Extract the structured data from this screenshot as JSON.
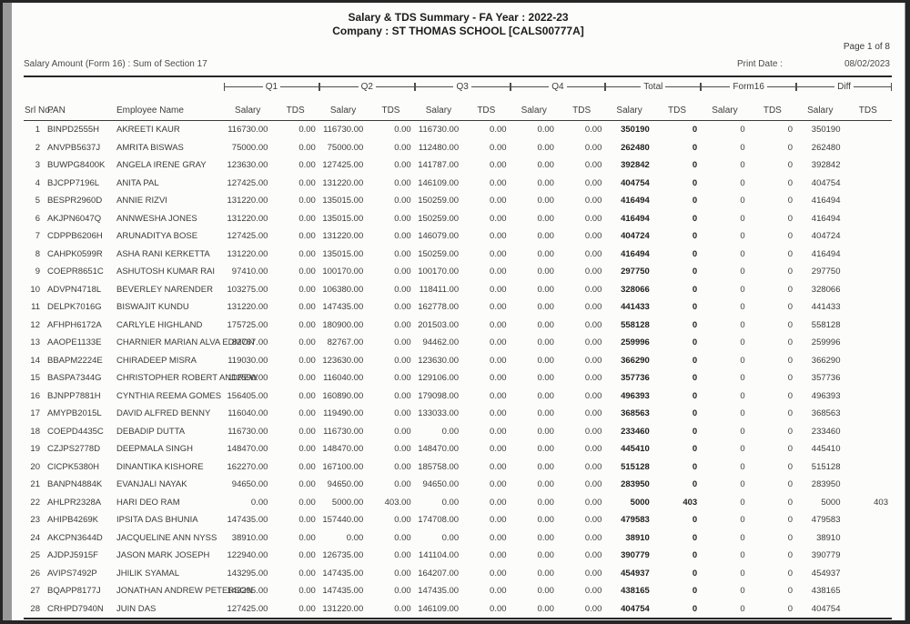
{
  "header": {
    "title": "Salary & TDS Summary - FA Year : 2022-23",
    "company": "Company : ST THOMAS SCHOOL [CALS00777A]",
    "page_info": "Page 1 of 8",
    "left_note": "Salary Amount (Form 16) :  Sum of Section 17",
    "print_date_label": "Print Date :",
    "print_date": "08/02/2023"
  },
  "colors": {
    "page_background": "#fcfcfb",
    "frame": "#262626",
    "rule": "#262626",
    "text": "#3a3a3a"
  },
  "table": {
    "fixed_headers": [
      "Srl No.",
      "PAN",
      "Employee Name"
    ],
    "groups": [
      "Q1",
      "Q2",
      "Q3",
      "Q4",
      "Total",
      "Form16",
      "Diff"
    ],
    "sub_headers": [
      "Salary",
      "TDS"
    ],
    "rows": [
      [
        "1",
        "BINPD2555H",
        "AKREETI KAUR",
        "116730.00",
        "0.00",
        "116730.00",
        "0.00",
        "116730.00",
        "0.00",
        "0.00",
        "0.00",
        "350190",
        "0",
        "0",
        "0",
        "350190",
        ""
      ],
      [
        "2",
        "ANVPB5637J",
        "AMRITA BISWAS",
        "75000.00",
        "0.00",
        "75000.00",
        "0.00",
        "112480.00",
        "0.00",
        "0.00",
        "0.00",
        "262480",
        "0",
        "0",
        "0",
        "262480",
        ""
      ],
      [
        "3",
        "BUWPG8400K",
        "ANGELA IRENE GRAY",
        "123630.00",
        "0.00",
        "127425.00",
        "0.00",
        "141787.00",
        "0.00",
        "0.00",
        "0.00",
        "392842",
        "0",
        "0",
        "0",
        "392842",
        ""
      ],
      [
        "4",
        "BJCPP7196L",
        "ANITA PAL",
        "127425.00",
        "0.00",
        "131220.00",
        "0.00",
        "146109.00",
        "0.00",
        "0.00",
        "0.00",
        "404754",
        "0",
        "0",
        "0",
        "404754",
        ""
      ],
      [
        "5",
        "BESPR2960D",
        "ANNIE RIZVI",
        "131220.00",
        "0.00",
        "135015.00",
        "0.00",
        "150259.00",
        "0.00",
        "0.00",
        "0.00",
        "416494",
        "0",
        "0",
        "0",
        "416494",
        ""
      ],
      [
        "6",
        "AKJPN6047Q",
        "ANNWESHA JONES",
        "131220.00",
        "0.00",
        "135015.00",
        "0.00",
        "150259.00",
        "0.00",
        "0.00",
        "0.00",
        "416494",
        "0",
        "0",
        "0",
        "416494",
        ""
      ],
      [
        "7",
        "CDPPB6206H",
        "ARUNADITYA BOSE",
        "127425.00",
        "0.00",
        "131220.00",
        "0.00",
        "146079.00",
        "0.00",
        "0.00",
        "0.00",
        "404724",
        "0",
        "0",
        "0",
        "404724",
        ""
      ],
      [
        "8",
        "CAHPK0599R",
        "ASHA RANI KERKETTA",
        "131220.00",
        "0.00",
        "135015.00",
        "0.00",
        "150259.00",
        "0.00",
        "0.00",
        "0.00",
        "416494",
        "0",
        "0",
        "0",
        "416494",
        ""
      ],
      [
        "9",
        "COEPR8651C",
        "ASHUTOSH KUMAR RAI",
        "97410.00",
        "0.00",
        "100170.00",
        "0.00",
        "100170.00",
        "0.00",
        "0.00",
        "0.00",
        "297750",
        "0",
        "0",
        "0",
        "297750",
        ""
      ],
      [
        "10",
        "ADVPN4718L",
        "BEVERLEY NARENDER",
        "103275.00",
        "0.00",
        "106380.00",
        "0.00",
        "118411.00",
        "0.00",
        "0.00",
        "0.00",
        "328066",
        "0",
        "0",
        "0",
        "328066",
        ""
      ],
      [
        "11",
        "DELPK7016G",
        "BISWAJIT KUNDU",
        "131220.00",
        "0.00",
        "147435.00",
        "0.00",
        "162778.00",
        "0.00",
        "0.00",
        "0.00",
        "441433",
        "0",
        "0",
        "0",
        "441433",
        ""
      ],
      [
        "12",
        "AFHPH6172A",
        "CARLYLE HIGHLAND",
        "175725.00",
        "0.00",
        "180900.00",
        "0.00",
        "201503.00",
        "0.00",
        "0.00",
        "0.00",
        "558128",
        "0",
        "0",
        "0",
        "558128",
        ""
      ],
      [
        "13",
        "AAOPE1133E",
        "CHARNIER MARIAN ALVA EDMON",
        "82767.00",
        "0.00",
        "82767.00",
        "0.00",
        "94462.00",
        "0.00",
        "0.00",
        "0.00",
        "259996",
        "0",
        "0",
        "0",
        "259996",
        ""
      ],
      [
        "14",
        "BBAPM2224E",
        "CHIRADEEP MISRA",
        "119030.00",
        "0.00",
        "123630.00",
        "0.00",
        "123630.00",
        "0.00",
        "0.00",
        "0.00",
        "366290",
        "0",
        "0",
        "0",
        "366290",
        ""
      ],
      [
        "15",
        "BASPA7344G",
        "CHRISTOPHER ROBERT ANDREW",
        "112590.00",
        "0.00",
        "116040.00",
        "0.00",
        "129106.00",
        "0.00",
        "0.00",
        "0.00",
        "357736",
        "0",
        "0",
        "0",
        "357736",
        ""
      ],
      [
        "16",
        "BJNPP7881H",
        "CYNTHIA REEMA GOMES",
        "156405.00",
        "0.00",
        "160890.00",
        "0.00",
        "179098.00",
        "0.00",
        "0.00",
        "0.00",
        "496393",
        "0",
        "0",
        "0",
        "496393",
        ""
      ],
      [
        "17",
        "AMYPB2015L",
        "DAVID ALFRED BENNY",
        "116040.00",
        "0.00",
        "119490.00",
        "0.00",
        "133033.00",
        "0.00",
        "0.00",
        "0.00",
        "368563",
        "0",
        "0",
        "0",
        "368563",
        ""
      ],
      [
        "18",
        "COEPD4435C",
        "DEBADIP DUTTA",
        "116730.00",
        "0.00",
        "116730.00",
        "0.00",
        "0.00",
        "0.00",
        "0.00",
        "0.00",
        "233460",
        "0",
        "0",
        "0",
        "233460",
        ""
      ],
      [
        "19",
        "CZJPS2778D",
        "DEEPMALA SINGH",
        "148470.00",
        "0.00",
        "148470.00",
        "0.00",
        "148470.00",
        "0.00",
        "0.00",
        "0.00",
        "445410",
        "0",
        "0",
        "0",
        "445410",
        ""
      ],
      [
        "20",
        "CICPK5380H",
        "DINANTIKA KISHORE",
        "162270.00",
        "0.00",
        "167100.00",
        "0.00",
        "185758.00",
        "0.00",
        "0.00",
        "0.00",
        "515128",
        "0",
        "0",
        "0",
        "515128",
        ""
      ],
      [
        "21",
        "BANPN4884K",
        "EVANJALI NAYAK",
        "94650.00",
        "0.00",
        "94650.00",
        "0.00",
        "94650.00",
        "0.00",
        "0.00",
        "0.00",
        "283950",
        "0",
        "0",
        "0",
        "283950",
        ""
      ],
      [
        "22",
        "AHLPR2328A",
        "HARI DEO RAM",
        "0.00",
        "0.00",
        "5000.00",
        "403.00",
        "0.00",
        "0.00",
        "0.00",
        "0.00",
        "5000",
        "403",
        "0",
        "0",
        "5000",
        "403"
      ],
      [
        "23",
        "AHIPB4269K",
        "IPSITA DAS BHUNIA",
        "147435.00",
        "0.00",
        "157440.00",
        "0.00",
        "174708.00",
        "0.00",
        "0.00",
        "0.00",
        "479583",
        "0",
        "0",
        "0",
        "479583",
        ""
      ],
      [
        "24",
        "AKCPN3644D",
        "JACQUELINE ANN NYSS",
        "38910.00",
        "0.00",
        "0.00",
        "0.00",
        "0.00",
        "0.00",
        "0.00",
        "0.00",
        "38910",
        "0",
        "0",
        "0",
        "38910",
        ""
      ],
      [
        "25",
        "AJDPJ5915F",
        "JASON MARK JOSEPH",
        "122940.00",
        "0.00",
        "126735.00",
        "0.00",
        "141104.00",
        "0.00",
        "0.00",
        "0.00",
        "390779",
        "0",
        "0",
        "0",
        "390779",
        ""
      ],
      [
        "26",
        "AVIPS7492P",
        "JHILIK SYAMAL",
        "143295.00",
        "0.00",
        "147435.00",
        "0.00",
        "164207.00",
        "0.00",
        "0.00",
        "0.00",
        "454937",
        "0",
        "0",
        "0",
        "454937",
        ""
      ],
      [
        "27",
        "BQAPP8177J",
        "JONATHAN ANDREW PETERSON",
        "143295.00",
        "0.00",
        "147435.00",
        "0.00",
        "147435.00",
        "0.00",
        "0.00",
        "0.00",
        "438165",
        "0",
        "0",
        "0",
        "438165",
        ""
      ],
      [
        "28",
        "CRHPD7940N",
        "JUIN DAS",
        "127425.00",
        "0.00",
        "131220.00",
        "0.00",
        "146109.00",
        "0.00",
        "0.00",
        "0.00",
        "404754",
        "0",
        "0",
        "0",
        "404754",
        ""
      ]
    ]
  }
}
